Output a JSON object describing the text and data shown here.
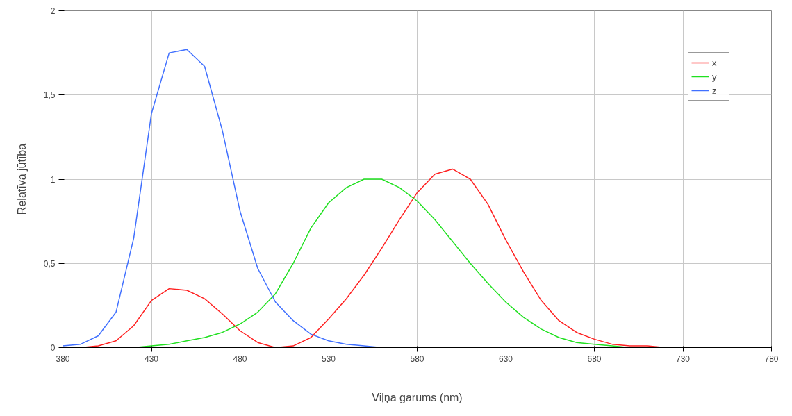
{
  "chart_data": {
    "type": "line",
    "xlabel": "Viļņa garums (nm)",
    "ylabel": "Relatīva jūtība",
    "xlim": [
      380,
      780
    ],
    "xticks": [
      380,
      430,
      480,
      530,
      580,
      630,
      680,
      730,
      780
    ],
    "ylim": [
      0,
      2
    ],
    "yticks": [
      0,
      {
        "value": 0.5,
        "label": "0,5"
      },
      1,
      {
        "value": 1.5,
        "label": "1,5"
      },
      2
    ],
    "grid": true,
    "legend": "top right",
    "marker": "none",
    "line_style": "solid",
    "series": [
      {
        "name": "x",
        "color": "#ff2020",
        "x": [
          380,
          390,
          400,
          410,
          420,
          430,
          440,
          450,
          460,
          470,
          480,
          490,
          500,
          510,
          520,
          530,
          540,
          550,
          560,
          570,
          580,
          590,
          600,
          610,
          620,
          630,
          640,
          650,
          660,
          670,
          680,
          690,
          700,
          710,
          720,
          725
        ],
        "values": [
          0,
          0,
          0.01,
          0.04,
          0.13,
          0.28,
          0.35,
          0.34,
          0.29,
          0.2,
          0.1,
          0.03,
          0,
          0.01,
          0.06,
          0.17,
          0.29,
          0.43,
          0.59,
          0.76,
          0.92,
          1.03,
          1.06,
          1,
          0.85,
          0.64,
          0.45,
          0.28,
          0.16,
          0.09,
          0.05,
          0.02,
          0.01,
          0.01,
          0,
          0
        ]
      },
      {
        "name": "y",
        "color": "#20e020",
        "x": [
          420,
          430,
          440,
          450,
          460,
          470,
          480,
          490,
          500,
          510,
          520,
          530,
          540,
          550,
          560,
          570,
          580,
          590,
          600,
          610,
          620,
          630,
          640,
          650,
          660,
          670,
          680,
          690,
          700,
          710
        ],
        "values": [
          0,
          0.01,
          0.02,
          0.04,
          0.06,
          0.09,
          0.14,
          0.21,
          0.32,
          0.5,
          0.71,
          0.86,
          0.95,
          1,
          1,
          0.95,
          0.87,
          0.76,
          0.63,
          0.5,
          0.38,
          0.27,
          0.18,
          0.11,
          0.06,
          0.03,
          0.02,
          0.01,
          0,
          0
        ]
      },
      {
        "name": "z",
        "color": "#4070ff",
        "x": [
          380,
          390,
          400,
          410,
          420,
          430,
          440,
          450,
          460,
          470,
          480,
          490,
          500,
          510,
          520,
          530,
          540,
          550,
          560,
          570
        ],
        "values": [
          0.01,
          0.02,
          0.07,
          0.21,
          0.65,
          1.39,
          1.75,
          1.77,
          1.67,
          1.29,
          0.81,
          0.47,
          0.27,
          0.16,
          0.08,
          0.04,
          0.02,
          0.01,
          0,
          0
        ]
      }
    ]
  }
}
